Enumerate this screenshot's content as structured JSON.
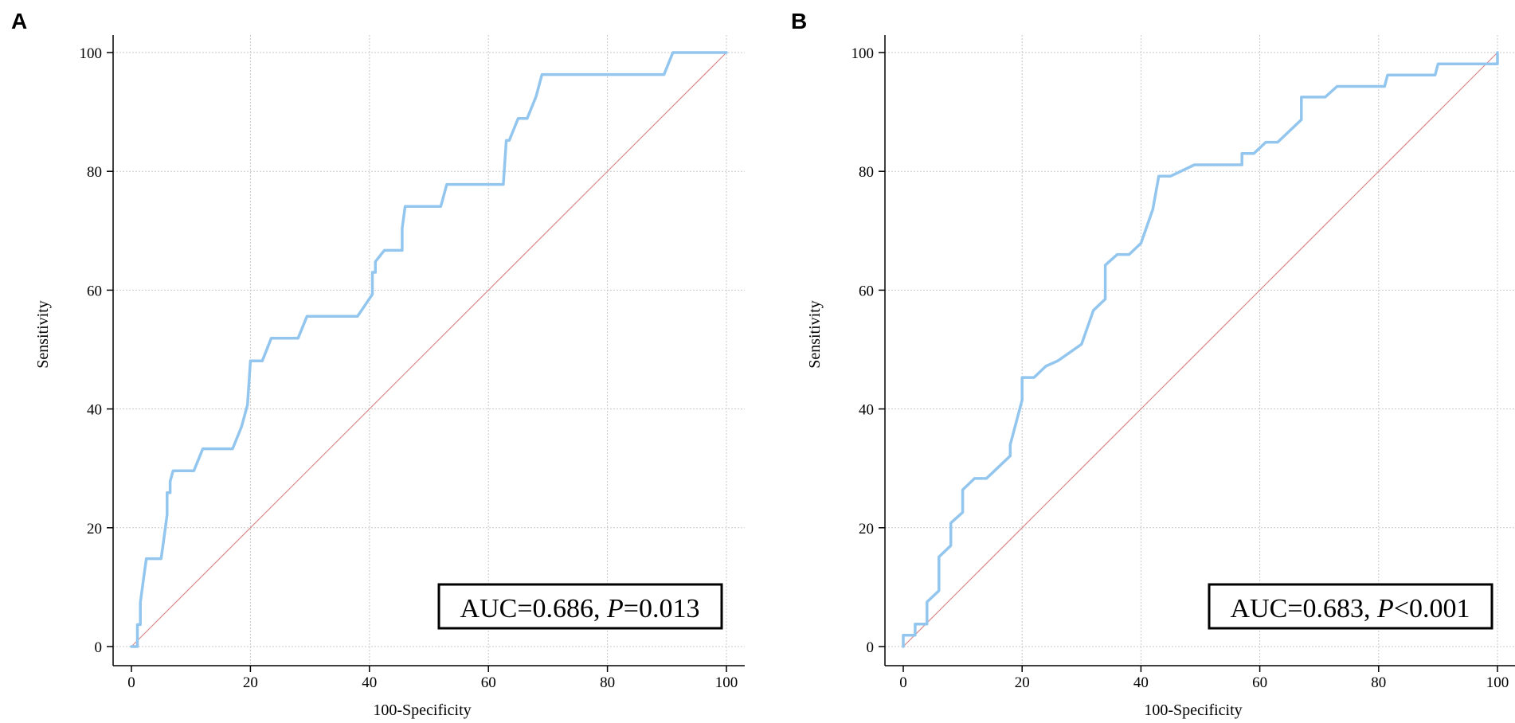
{
  "chart_data": [
    {
      "type": "line",
      "panel_label": "A",
      "xlabel": "100-Specificity",
      "ylabel": "Sensitivity",
      "xlim": [
        0,
        100
      ],
      "ylim": [
        0,
        100
      ],
      "xticks": [
        0,
        20,
        40,
        60,
        80,
        100
      ],
      "yticks": [
        0,
        20,
        40,
        60,
        80,
        100
      ],
      "grid": true,
      "annotation": {
        "auc_label": "AUC=0.686, ",
        "p_label": "P",
        "p_value": "=0.013"
      },
      "series": [
        {
          "name": "ROC curve",
          "color": "#93c6ee",
          "x": [
            0,
            1,
            1,
            1.5,
            1.5,
            2,
            2.5,
            3,
            5,
            5.5,
            6,
            6,
            6.5,
            6.5,
            7,
            10.5,
            12,
            17,
            18.5,
            19.5,
            20,
            22,
            23.5,
            28,
            29.5,
            38,
            40.5,
            40.5,
            41,
            41,
            42.5,
            45.5,
            45.5,
            46,
            52,
            53,
            62.5,
            63,
            63.5,
            65,
            66.5,
            68,
            69,
            89.5,
            91,
            100
          ],
          "y": [
            0,
            0,
            3.7,
            3.7,
            7.4,
            11.1,
            14.8,
            14.8,
            14.8,
            18.5,
            22.2,
            25.9,
            25.9,
            27.8,
            29.6,
            29.6,
            33.3,
            33.3,
            37,
            40.7,
            48.1,
            48.1,
            51.9,
            51.9,
            55.6,
            55.6,
            59.3,
            63,
            63,
            64.8,
            66.7,
            66.7,
            70.4,
            74.1,
            74.1,
            77.8,
            77.8,
            85.2,
            85.2,
            88.9,
            88.9,
            92.6,
            96.3,
            96.3,
            100,
            100
          ]
        },
        {
          "name": "Reference line",
          "color": "#d98a8a",
          "x": [
            0,
            100
          ],
          "y": [
            0,
            100
          ]
        }
      ]
    },
    {
      "type": "line",
      "panel_label": "B",
      "xlabel": "100-Specificity",
      "ylabel": "Sensitivity",
      "xlim": [
        0,
        100
      ],
      "ylim": [
        0,
        100
      ],
      "xticks": [
        0,
        20,
        40,
        60,
        80,
        100
      ],
      "yticks": [
        0,
        20,
        40,
        60,
        80,
        100
      ],
      "grid": true,
      "annotation": {
        "auc_label": "AUC=0.683, ",
        "p_label": "P",
        "p_value": "<0.001"
      },
      "series": [
        {
          "name": "ROC curve",
          "color": "#93c6ee",
          "x": [
            0,
            0,
            2,
            2,
            4,
            4,
            6,
            6,
            8,
            8,
            10,
            10,
            12,
            14,
            16,
            18,
            18,
            20,
            20,
            22,
            24,
            26,
            30,
            32,
            34,
            34,
            36,
            38,
            40,
            42,
            43,
            43,
            45,
            49,
            57,
            57,
            59,
            61,
            63,
            65,
            67,
            67,
            71,
            73,
            81,
            81.5,
            89.5,
            90,
            98,
            100,
            100
          ],
          "y": [
            0,
            1.9,
            1.9,
            3.8,
            3.8,
            7.5,
            9.4,
            15.1,
            17,
            20.8,
            22.6,
            26.4,
            28.3,
            28.3,
            30.2,
            32.1,
            34,
            41.5,
            45.3,
            45.3,
            47.2,
            48.1,
            50.9,
            56.6,
            58.5,
            64.2,
            66,
            66,
            67.9,
            73.6,
            79.2,
            79.2,
            79.2,
            81.1,
            81.1,
            83,
            83,
            84.9,
            84.9,
            86.8,
            88.7,
            92.5,
            92.5,
            94.3,
            94.3,
            96.2,
            96.2,
            98.1,
            98.1,
            98.1,
            100
          ]
        },
        {
          "name": "Reference line",
          "color": "#d98a8a",
          "x": [
            0,
            100
          ],
          "y": [
            0,
            100
          ]
        }
      ]
    }
  ]
}
